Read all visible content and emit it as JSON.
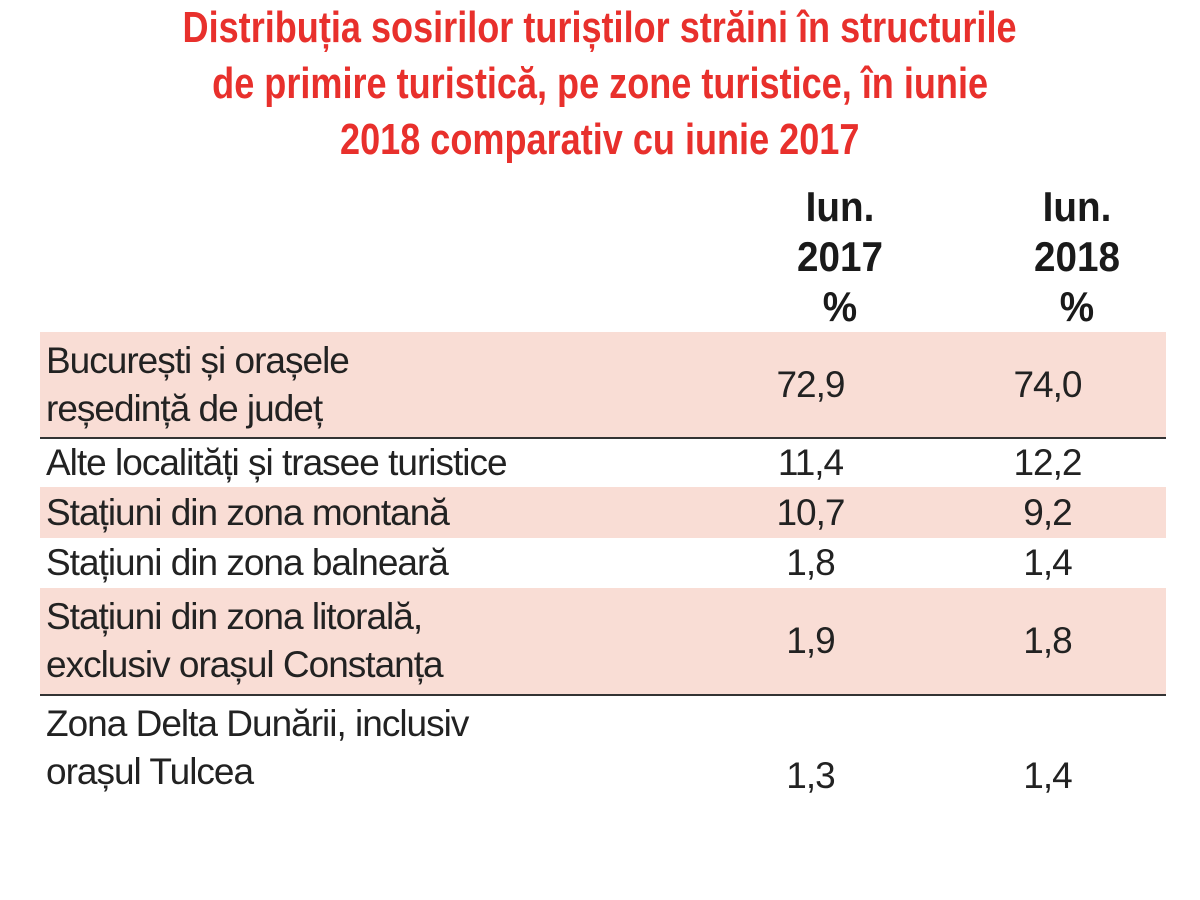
{
  "chart_data": {
    "type": "table",
    "title": [
      "Distribuția sosirilor turiștilor străini în structurile",
      "de primire turistică, pe zone turistice, în iunie",
      "2018 comparativ cu iunie 2017"
    ],
    "columns": [
      [
        "Iun.",
        "2017",
        "%"
      ],
      [
        "Iun.",
        "2018",
        "%"
      ]
    ],
    "rows": [
      {
        "label": [
          "București și orașele",
          "reședință de județ"
        ],
        "values": [
          "72,9",
          "74,0"
        ],
        "shaded": true
      },
      {
        "label": [
          "Alte localități și trasee turistice"
        ],
        "values": [
          "11,4",
          "12,2"
        ],
        "shaded": false
      },
      {
        "label": [
          "Stațiuni din zona montană"
        ],
        "values": [
          "10,7",
          "9,2"
        ],
        "shaded": true
      },
      {
        "label": [
          "Stațiuni din zona balneară"
        ],
        "values": [
          "1,8",
          "1,4"
        ],
        "shaded": false
      },
      {
        "label": [
          "Stațiuni din zona litorală,",
          "exclusiv orașul Constanța"
        ],
        "values": [
          "1,9",
          "1,8"
        ],
        "shaded": true
      },
      {
        "label": [
          "Zona Delta Dunării, inclusiv",
          "orașul Tulcea"
        ],
        "values": [
          "1,3",
          "1,4"
        ],
        "shaded": false
      }
    ],
    "colors": {
      "title": "#e8302c",
      "shade": "#f9ddd5"
    }
  }
}
